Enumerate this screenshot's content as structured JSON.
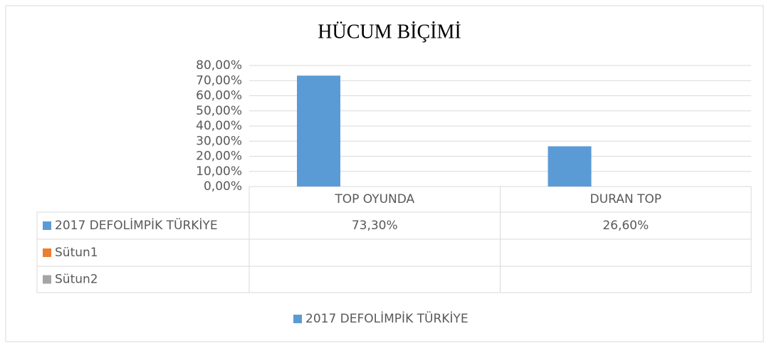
{
  "chart_data": {
    "type": "bar",
    "title": "HÜCUM BİÇİMİ",
    "categories": [
      "TOP OYUNDA",
      "DURAN TOP"
    ],
    "series": [
      {
        "name": "2017 DEFOLİMPİK TÜRKİYE",
        "color": "#5b9bd5",
        "values": [
          73.3,
          26.6
        ],
        "value_labels": [
          "73,30%",
          "26,60%"
        ]
      },
      {
        "name": "Sütun1",
        "color": "#ed7d31",
        "values": [
          null,
          null
        ]
      },
      {
        "name": "Sütun2",
        "color": "#a5a5a5",
        "values": [
          null,
          null
        ]
      }
    ],
    "ylim": [
      0,
      80
    ],
    "yticks": [
      {
        "value": 0,
        "label": "0,00%"
      },
      {
        "value": 10,
        "label": "10,00%"
      },
      {
        "value": 20,
        "label": "20,00%"
      },
      {
        "value": 30,
        "label": "30,00%"
      },
      {
        "value": 40,
        "label": "40,00%"
      },
      {
        "value": 50,
        "label": "50,00%"
      },
      {
        "value": 60,
        "label": "60,00%"
      },
      {
        "value": 70,
        "label": "70,00%"
      },
      {
        "value": 80,
        "label": "80,00%"
      }
    ],
    "grid": true,
    "legend": "bottom"
  }
}
